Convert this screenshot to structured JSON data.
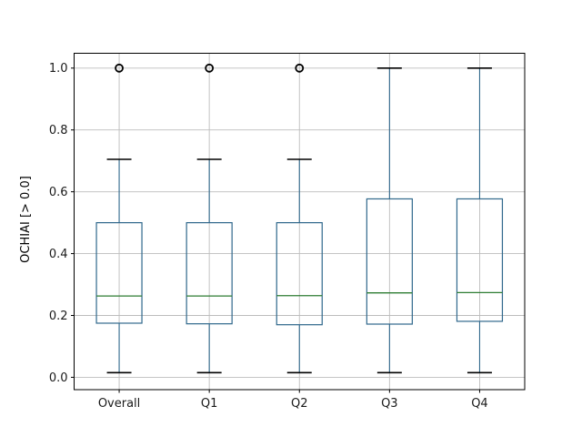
{
  "figure": {
    "background": "#ffffff"
  },
  "chart_data": {
    "type": "boxplot",
    "title": "",
    "xlabel": "",
    "ylabel": "OCHIAI [> 0.0]",
    "categories": [
      "Overall",
      "Q1",
      "Q2",
      "Q3",
      "Q4"
    ],
    "series": [
      {
        "label": "Overall",
        "whislo": 0.015,
        "q1": 0.175,
        "med": 0.263,
        "q3": 0.5,
        "whishi": 0.705,
        "fliers": [
          1.0
        ]
      },
      {
        "label": "Q1",
        "whislo": 0.015,
        "q1": 0.173,
        "med": 0.263,
        "q3": 0.5,
        "whishi": 0.705,
        "fliers": [
          1.0
        ]
      },
      {
        "label": "Q2",
        "whislo": 0.015,
        "q1": 0.17,
        "med": 0.264,
        "q3": 0.5,
        "whishi": 0.705,
        "fliers": [
          1.0
        ]
      },
      {
        "label": "Q3",
        "whislo": 0.015,
        "q1": 0.172,
        "med": 0.273,
        "q3": 0.577,
        "whishi": 1.0,
        "fliers": []
      },
      {
        "label": "Q4",
        "whislo": 0.015,
        "q1": 0.181,
        "med": 0.274,
        "q3": 0.577,
        "whishi": 1.0,
        "fliers": []
      }
    ],
    "yticks": [
      0.0,
      0.2,
      0.4,
      0.6,
      0.8,
      1.0
    ],
    "ytick_labels": [
      "0.0",
      "0.2",
      "0.4",
      "0.6",
      "0.8",
      "1.0"
    ],
    "ylim": [
      -0.04,
      1.048
    ],
    "grid": true,
    "legend": false,
    "colors": {
      "box": "#30688c",
      "whisker": "#30688c",
      "median": "#2e7d32",
      "cap": "#000000",
      "flier": "#000000",
      "grid": "#bdbdbd",
      "frame": "#000000",
      "text": "#1a1a1a"
    }
  }
}
